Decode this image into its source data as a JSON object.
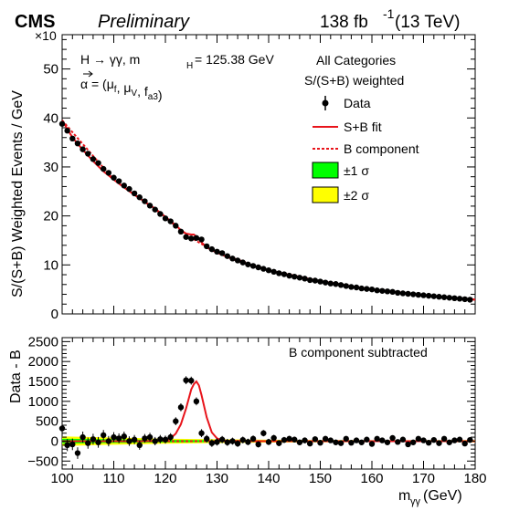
{
  "header": {
    "experiment": "CMS",
    "status": "Preliminary",
    "lumi": "138 fb",
    "lumi_exp": "-1",
    "energy": " (13 TeV)"
  },
  "top_panel": {
    "ylabel": "S/(S+B) Weighted Events / GeV",
    "multiplier": "×10",
    "process": "H → γγ, m",
    "process_sub": "H",
    "process_value": " = 125.38 GeV",
    "params_prefix": "α = (μ",
    "params_sub1": "f",
    "params_mid": ", μ",
    "params_sub2": "V",
    "params_mid2": ", f",
    "params_sub3": "a3",
    "params_suffix": ")",
    "category": "All Categories",
    "weighting": "S/(S+B) weighted",
    "ylim": [
      0,
      57
    ],
    "yticks": [
      "0",
      "10",
      "20",
      "30",
      "40",
      "50"
    ],
    "legend": {
      "data": "Data",
      "fit": "S+B fit",
      "bkg": "B component",
      "band1": "±1 σ",
      "band2": "±2 σ"
    }
  },
  "bottom_panel": {
    "ylabel": "Data - B",
    "annotation": "B component subtracted",
    "ylim": [
      -700,
      2600
    ],
    "yticks": [
      "−500",
      "0",
      "500",
      "1000",
      "1500",
      "2000",
      "2500"
    ]
  },
  "xaxis": {
    "label_main": "m",
    "label_sub": "γγ",
    "label_unit": " (GeV)",
    "xlim": [
      100,
      180
    ],
    "xticks": [
      "100",
      "110",
      "120",
      "130",
      "140",
      "150",
      "160",
      "170",
      "180"
    ]
  },
  "colors": {
    "fit": "#e8141b",
    "bkg": "#e8141b",
    "band1": "#00ff00",
    "band2": "#ffff00",
    "data": "#000000"
  },
  "chart_data": [
    {
      "type": "scatter",
      "panel": "top",
      "xlabel": "m_γγ (GeV)",
      "ylabel": "S/(S+B) Weighted Events / GeV",
      "y_scale_factor": "×10",
      "series": [
        {
          "name": "Data",
          "x": [
            100,
            101,
            102,
            103,
            104,
            105,
            106,
            107,
            108,
            109,
            110,
            111,
            112,
            113,
            114,
            115,
            116,
            117,
            118,
            119,
            120,
            121,
            122,
            123,
            124,
            125,
            126,
            127,
            128,
            129,
            130,
            131,
            132,
            133,
            134,
            135,
            136,
            137,
            138,
            139,
            140,
            141,
            142,
            143,
            144,
            145,
            146,
            147,
            148,
            149,
            150,
            151,
            152,
            153,
            154,
            155,
            156,
            157,
            158,
            159,
            160,
            161,
            162,
            163,
            164,
            165,
            166,
            167,
            168,
            169,
            170,
            171,
            172,
            173,
            174,
            175,
            176,
            177,
            178,
            179
          ],
          "y": [
            38.8,
            37.4,
            35.8,
            34.8,
            33.6,
            32.7,
            31.6,
            30.8,
            29.6,
            28.8,
            27.8,
            27.1,
            26.2,
            25.5,
            24.6,
            23.8,
            23.0,
            22.1,
            21.3,
            20.4,
            19.5,
            18.9,
            18.0,
            16.8,
            15.7,
            15.4,
            15.5,
            15.2,
            13.8,
            13.2,
            12.7,
            12.4,
            11.8,
            11.3,
            10.9,
            10.5,
            10.1,
            9.8,
            9.5,
            9.2,
            8.9,
            8.6,
            8.3,
            8.1,
            7.8,
            7.6,
            7.4,
            7.2,
            6.9,
            6.8,
            6.6,
            6.4,
            6.2,
            6.1,
            5.9,
            5.7,
            5.5,
            5.4,
            5.2,
            5.1,
            5.0,
            4.8,
            4.7,
            4.6,
            4.5,
            4.3,
            4.2,
            4.1,
            4.0,
            3.9,
            3.8,
            3.7,
            3.6,
            3.5,
            3.4,
            3.3,
            3.2,
            3.1,
            3.0,
            2.9
          ]
        },
        {
          "name": "S+B fit",
          "x": [
            100,
            102,
            104,
            106,
            108,
            110,
            112,
            114,
            116,
            118,
            120,
            122,
            123,
            124,
            125,
            125.5,
            126,
            127,
            128,
            129,
            130,
            132,
            134,
            136,
            138,
            140,
            145,
            150,
            155,
            160,
            165,
            170,
            175,
            180
          ],
          "y": [
            39.5,
            36.0,
            33.5,
            31.2,
            29.1,
            27.4,
            25.8,
            24.3,
            22.9,
            21.5,
            19.8,
            18.1,
            17.1,
            16.4,
            16.2,
            16.2,
            15.8,
            14.6,
            13.6,
            13.0,
            12.5,
            11.6,
            10.8,
            10.1,
            9.5,
            8.9,
            7.7,
            6.7,
            5.8,
            5.0,
            4.4,
            3.8,
            3.3,
            2.9
          ]
        },
        {
          "name": "B component",
          "x": [
            100,
            110,
            120,
            122,
            124,
            126,
            128,
            130,
            140,
            150,
            160,
            170,
            180
          ],
          "y": [
            39.5,
            27.4,
            19.8,
            17.9,
            16.3,
            14.9,
            13.7,
            12.5,
            8.9,
            6.7,
            5.0,
            3.8,
            2.9
          ]
        }
      ]
    },
    {
      "type": "scatter",
      "panel": "bottom",
      "xlabel": "m_γγ (GeV)",
      "ylabel": "Data - B",
      "annotation": "B component subtracted",
      "series": [
        {
          "name": "Data",
          "x": [
            100,
            101,
            102,
            103,
            104,
            105,
            106,
            107,
            108,
            109,
            110,
            111,
            112,
            113,
            114,
            115,
            116,
            117,
            118,
            119,
            120,
            121,
            122,
            123,
            124,
            125,
            126,
            127,
            128,
            129,
            130,
            131,
            132,
            133,
            134,
            135,
            136,
            137,
            138,
            139,
            140,
            141,
            142,
            143,
            144,
            145,
            146,
            147,
            148,
            149,
            150,
            151,
            152,
            153,
            154,
            155,
            156,
            157,
            158,
            159,
            160,
            161,
            162,
            163,
            164,
            165,
            166,
            167,
            168,
            169,
            170,
            171,
            172,
            173,
            174,
            175,
            176,
            177,
            178,
            179
          ],
          "y": [
            320,
            -100,
            -80,
            -300,
            100,
            -50,
            50,
            -30,
            150,
            0,
            100,
            70,
            120,
            0,
            40,
            -100,
            70,
            100,
            0,
            50,
            40,
            100,
            500,
            850,
            1530,
            1520,
            1000,
            200,
            60,
            -50,
            -20,
            40,
            -30,
            0,
            -60,
            30,
            -20,
            60,
            -80,
            200,
            -20,
            80,
            -50,
            30,
            60,
            40,
            -30,
            20,
            -60,
            50,
            -40,
            60,
            20,
            -30,
            -50,
            60,
            -40,
            20,
            -30,
            40,
            -70,
            60,
            20,
            -30,
            80,
            -20,
            40,
            -80,
            -30,
            60,
            20,
            -40,
            30,
            -50,
            60,
            -30,
            20,
            40,
            -60,
            30
          ],
          "yerr": [
            150,
            150,
            145,
            145,
            140,
            140,
            135,
            135,
            130,
            130,
            125,
            125,
            120,
            120,
            115,
            115,
            110,
            110,
            105,
            105,
            100,
            100,
            100,
            100,
            100,
            100,
            100,
            100,
            95,
            95,
            90,
            90,
            88,
            88,
            85,
            85,
            82,
            82,
            80,
            80,
            78,
            78,
            76,
            76,
            74,
            74,
            72,
            72,
            70,
            70,
            68,
            68,
            66,
            66,
            64,
            64,
            62,
            62,
            60,
            60,
            58,
            58,
            56,
            56,
            55,
            55,
            54,
            54,
            53,
            53,
            52,
            52,
            51,
            51,
            50,
            50,
            49,
            49,
            48,
            48
          ]
        },
        {
          "name": "S+B fit",
          "x": [
            100,
            115,
            119,
            120,
            121,
            122,
            123,
            124,
            125,
            125.5,
            126,
            126.5,
            127,
            128,
            129,
            130,
            131,
            132,
            140,
            180
          ],
          "y": [
            0,
            0,
            10,
            25,
            70,
            190,
            420,
            820,
            1300,
            1430,
            1500,
            1400,
            1150,
            600,
            220,
            70,
            20,
            5,
            0,
            0
          ]
        },
        {
          "name": "B component",
          "x": [
            100,
            180
          ],
          "y": [
            0,
            0
          ]
        },
        {
          "name": "±1 σ",
          "x": [
            100,
            110,
            120,
            130,
            140,
            150,
            160,
            170,
            180
          ],
          "upper": [
            60,
            45,
            32,
            24,
            18,
            14,
            12,
            12,
            14
          ],
          "lower": [
            -60,
            -45,
            -32,
            -24,
            -18,
            -14,
            -12,
            -12,
            -14
          ]
        },
        {
          "name": "±2 σ",
          "x": [
            100,
            110,
            120,
            130,
            140,
            150,
            160,
            170,
            180
          ],
          "upper": [
            120,
            90,
            64,
            48,
            36,
            28,
            24,
            24,
            28
          ],
          "lower": [
            -120,
            -90,
            -64,
            -48,
            -36,
            -28,
            -24,
            -24,
            -28
          ]
        }
      ]
    }
  ]
}
